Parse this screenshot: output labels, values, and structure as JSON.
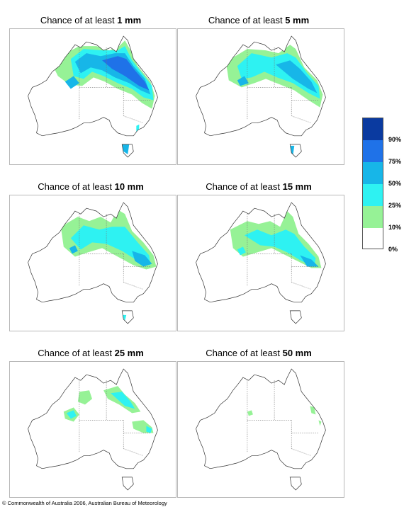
{
  "panels": [
    {
      "title_prefix": "Chance of at least ",
      "amount": "1 mm"
    },
    {
      "title_prefix": "Chance of at least ",
      "amount": "5 mm"
    },
    {
      "title_prefix": "Chance of at least ",
      "amount": "10 mm"
    },
    {
      "title_prefix": "Chance of at least ",
      "amount": "15 mm"
    },
    {
      "title_prefix": "Chance of at least ",
      "amount": "25 mm"
    },
    {
      "title_prefix": "Chance of at least ",
      "amount": "50 mm"
    }
  ],
  "legend": {
    "labels": [
      "90%",
      "75%",
      "50%",
      "25%",
      "10%",
      "0%"
    ],
    "colors": [
      "#0a3aa0",
      "#1f72e8",
      "#17b6e8",
      "#2ef2f2",
      "#96f296",
      "#ffffff"
    ]
  },
  "credit": "© Commonwealth of Australia 2006, Australian Bureau of Meteorology"
}
